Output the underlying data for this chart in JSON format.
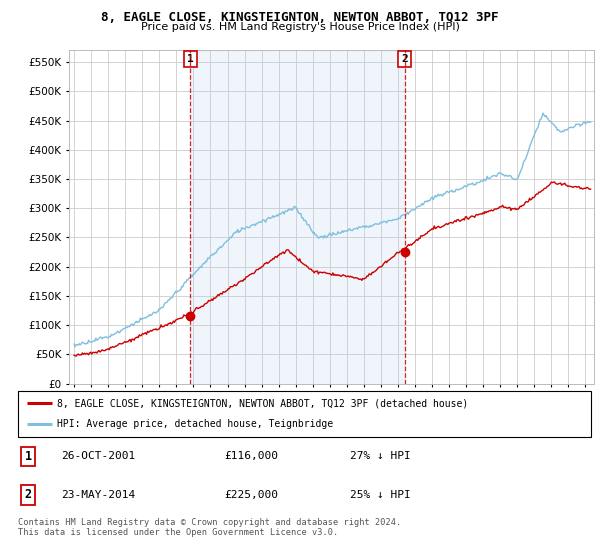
{
  "title": "8, EAGLE CLOSE, KINGSTEIGNTON, NEWTON ABBOT, TQ12 3PF",
  "subtitle": "Price paid vs. HM Land Registry's House Price Index (HPI)",
  "legend_line1": "8, EAGLE CLOSE, KINGSTEIGNTON, NEWTON ABBOT, TQ12 3PF (detached house)",
  "legend_line2": "HPI: Average price, detached house, Teignbridge",
  "footnote": "Contains HM Land Registry data © Crown copyright and database right 2024.\nThis data is licensed under the Open Government Licence v3.0.",
  "sale1_date": "26-OCT-2001",
  "sale1_price": "£116,000",
  "sale1_hpi": "27% ↓ HPI",
  "sale2_date": "23-MAY-2014",
  "sale2_price": "£225,000",
  "sale2_hpi": "25% ↓ HPI",
  "sale1_x": 2001.82,
  "sale1_y": 116000,
  "sale2_x": 2014.39,
  "sale2_y": 225000,
  "hpi_color": "#7fbfdf",
  "price_color": "#cc0000",
  "vline_color": "#cc0000",
  "shade_color": "#ddeeff",
  "grid_color": "#cccccc",
  "background_color": "#ffffff",
  "ylim": [
    0,
    570000
  ],
  "xlim_start": 1994.7,
  "xlim_end": 2025.5
}
